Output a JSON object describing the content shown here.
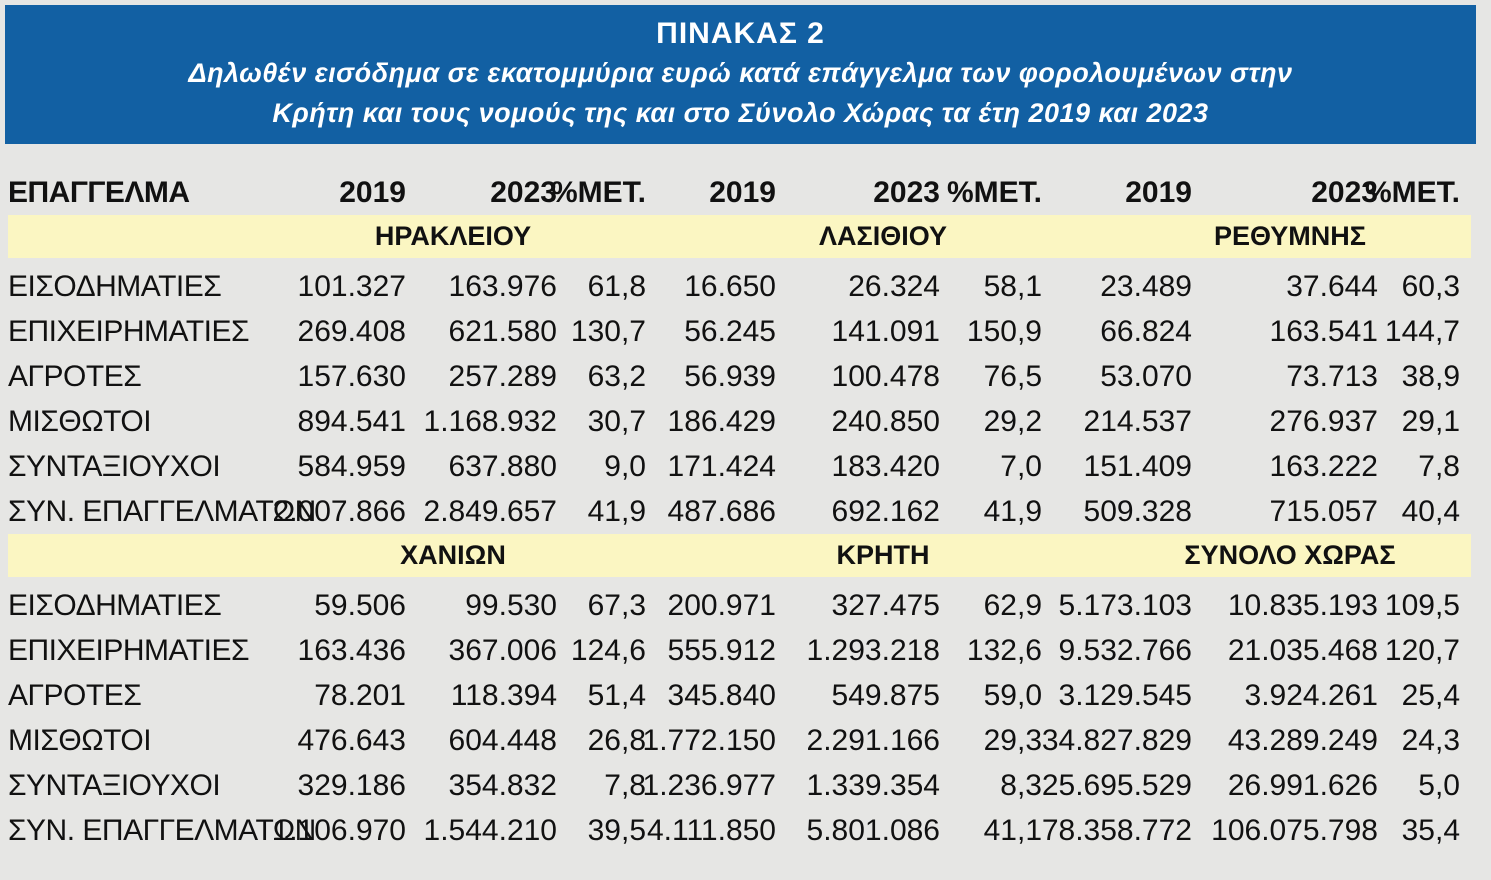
{
  "header": {
    "title": "ΠΙΝΑΚΑΣ 2",
    "subtitle_line1": "Δηλωθέν εισόδημα σε εκατομμύρια ευρώ κατά επάγγελμα των φορολουμένων στην",
    "subtitle_line2": "Κρήτη και τους νομούς της και στο Σύνολο Χώρας τα έτη 2019 και 2023"
  },
  "columns": [
    "ΕΠΑΓΓΕΛΜΑ",
    "2019",
    "2023",
    "%ΜΕΤ.",
    "2019",
    "2023",
    "%ΜΕΤ.",
    "2019",
    "2023",
    "%ΜΕΤ."
  ],
  "section1": {
    "regions": [
      "ΗΡΑΚΛΕΙΟΥ",
      "ΛΑΣΙΘΙΟΥ",
      "ΡΕΘΥΜΝΗΣ"
    ],
    "rows": [
      [
        "ΕΙΣΟΔΗΜΑΤΙΕΣ",
        "101.327",
        "163.976",
        "61,8",
        "16.650",
        "26.324",
        "58,1",
        "23.489",
        "37.644",
        "60,3"
      ],
      [
        "ΕΠΙΧΕΙΡΗΜΑΤΙΕΣ",
        "269.408",
        "621.580",
        "130,7",
        "56.245",
        "141.091",
        "150,9",
        "66.824",
        "163.541",
        "144,7"
      ],
      [
        "ΑΓΡΟΤΕΣ",
        "157.630",
        "257.289",
        "63,2",
        "56.939",
        "100.478",
        "76,5",
        "53.070",
        "73.713",
        "38,9"
      ],
      [
        "ΜΙΣΘΩΤΟΙ",
        "894.541",
        "1.168.932",
        "30,7",
        "186.429",
        "240.850",
        "29,2",
        "214.537",
        "276.937",
        "29,1"
      ],
      [
        "ΣΥΝΤΑΞΙΟΥΧΟΙ",
        "584.959",
        "637.880",
        "9,0",
        "171.424",
        "183.420",
        "7,0",
        "151.409",
        "163.222",
        "7,8"
      ],
      [
        "ΣΥΝ. ΕΠΑΓΓΕΛΜΑΤΩΝ",
        "2.007.866",
        "2.849.657",
        "41,9",
        "487.686",
        "692.162",
        "41,9",
        "509.328",
        "715.057",
        "40,4"
      ]
    ]
  },
  "section2": {
    "regions": [
      "ΧΑΝΙΩΝ",
      "ΚΡΗΤΗ",
      "ΣΥΝΟΛΟ ΧΩΡΑΣ"
    ],
    "rows": [
      [
        "ΕΙΣΟΔΗΜΑΤΙΕΣ",
        "59.506",
        "99.530",
        "67,3",
        "200.971",
        "327.475",
        "62,9",
        "5.173.103",
        "10.835.193",
        "109,5"
      ],
      [
        "ΕΠΙΧΕΙΡΗΜΑΤΙΕΣ",
        "163.436",
        "367.006",
        "124,6",
        "555.912",
        "1.293.218",
        "132,6",
        "9.532.766",
        "21.035.468",
        "120,7"
      ],
      [
        "ΑΓΡΟΤΕΣ",
        "78.201",
        "118.394",
        "51,4",
        "345.840",
        "549.875",
        "59,0",
        "3.129.545",
        "3.924.261",
        "25,4"
      ],
      [
        "ΜΙΣΘΩΤΟΙ",
        "476.643",
        "604.448",
        "26,8",
        "1.772.150",
        "2.291.166",
        "29,3",
        "34.827.829",
        "43.289.249",
        "24,3"
      ],
      [
        "ΣΥΝΤΑΞΙΟΥΧΟΙ",
        "329.186",
        "354.832",
        "7,8",
        "1.236.977",
        "1.339.354",
        "8,3",
        "25.695.529",
        "26.991.626",
        "5,0"
      ],
      [
        "ΣΥΝ. ΕΠΑΓΓΕΛΜΑΤΩΝ",
        "1.106.970",
        "1.544.210",
        "39,5",
        "4.111.850",
        "5.801.086",
        "41,1",
        "78.358.772",
        "106.075.798",
        "35,4"
      ]
    ]
  }
}
